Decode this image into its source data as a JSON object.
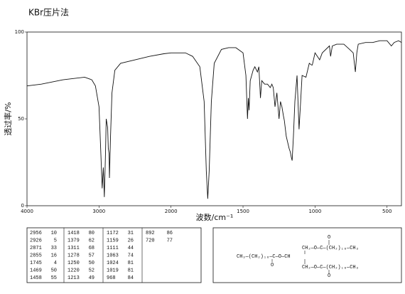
{
  "chart_data": {
    "type": "line",
    "title": "KBr压片法",
    "xlabel": "波数/cm⁻¹",
    "ylabel": "透过率/%",
    "xlim": [
      4000,
      400
    ],
    "xticks": [
      4000,
      3000,
      2000,
      1500,
      1000,
      500
    ],
    "ylim": [
      0,
      100
    ],
    "yticks": [
      0,
      50,
      100
    ],
    "color": "#111111",
    "x": [
      4000,
      3800,
      3500,
      3200,
      3100,
      3050,
      3000,
      2980,
      2965,
      2956,
      2940,
      2926,
      2910,
      2900,
      2880,
      2871,
      2860,
      2855,
      2840,
      2820,
      2780,
      2700,
      2500,
      2300,
      2100,
      2000,
      1900,
      1850,
      1800,
      1770,
      1755,
      1745,
      1735,
      1720,
      1700,
      1650,
      1600,
      1550,
      1500,
      1480,
      1469,
      1463,
      1458,
      1450,
      1430,
      1418,
      1400,
      1390,
      1379,
      1370,
      1350,
      1330,
      1311,
      1300,
      1290,
      1278,
      1265,
      1250,
      1240,
      1230,
      1220,
      1213,
      1200,
      1180,
      1172,
      1165,
      1159,
      1150,
      1140,
      1125,
      1111,
      1100,
      1090,
      1063,
      1040,
      1024,
      1019,
      1000,
      968,
      950,
      900,
      892,
      880,
      850,
      800,
      760,
      735,
      720,
      710,
      700,
      650,
      600,
      550,
      500,
      470,
      450,
      420,
      400
    ],
    "values": [
      69,
      70,
      72.5,
      74,
      72.5,
      69,
      57,
      36,
      20,
      10,
      22,
      5,
      30,
      50,
      45,
      33,
      30,
      16,
      40,
      65,
      78,
      82,
      84,
      86,
      87.5,
      88,
      88,
      86,
      80,
      60,
      20,
      4,
      20,
      60,
      82,
      90,
      91,
      91,
      88,
      75,
      50,
      62,
      55,
      72,
      78,
      80,
      77,
      80,
      62,
      72,
      70,
      70,
      68,
      70,
      68,
      57,
      65,
      50,
      60,
      57,
      52,
      49,
      40,
      33,
      31,
      28,
      26,
      40,
      60,
      75,
      44,
      60,
      75,
      74,
      82,
      81,
      81,
      88,
      84,
      88,
      92,
      86,
      92,
      93,
      93,
      90,
      88,
      77,
      88,
      93,
      94,
      94,
      95,
      95,
      92,
      94,
      95,
      94
    ]
  },
  "peak_table": [
    [
      [
        2956,
        10
      ],
      [
        2926,
        5
      ],
      [
        2871,
        33
      ],
      [
        2855,
        16
      ],
      [
        1745,
        4
      ],
      [
        1469,
        50
      ],
      [
        1458,
        55
      ]
    ],
    [
      [
        1418,
        80
      ],
      [
        1379,
        62
      ],
      [
        1311,
        68
      ],
      [
        1278,
        57
      ],
      [
        1250,
        50
      ],
      [
        1220,
        52
      ],
      [
        1213,
        49
      ]
    ],
    [
      [
        1172,
        31
      ],
      [
        1159,
        26
      ],
      [
        1111,
        44
      ],
      [
        1063,
        74
      ],
      [
        1024,
        81
      ],
      [
        1019,
        81
      ],
      [
        968,
        84
      ]
    ],
    [
      [
        892,
        86
      ],
      [
        720,
        77
      ]
    ]
  ],
  "structure": {
    "top": "CH₂—O—C—(CH₂)₁₆—CH₃",
    "middle": "CH₃—(CH₂)₁₆—C—O—CH",
    "bottom": "CH₂—O—C—(CH₂)₁₆—CH₃",
    "carbonyl": "O"
  }
}
